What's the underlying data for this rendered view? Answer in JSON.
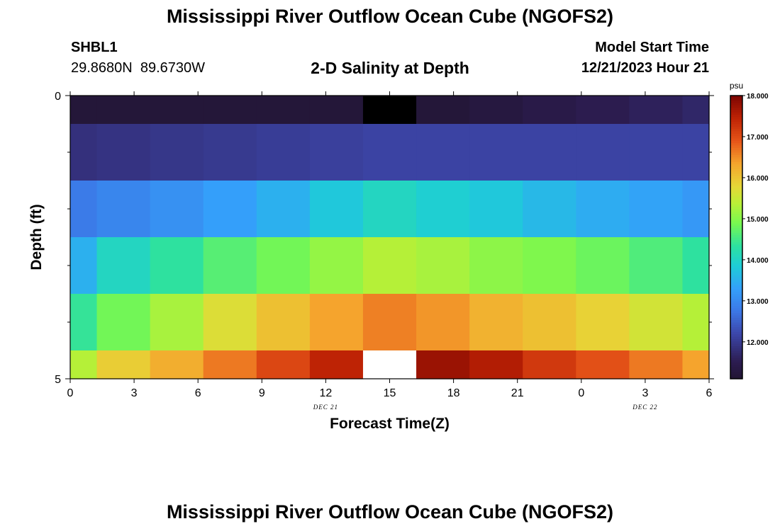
{
  "page": {
    "title": "Mississippi River Outflow Ocean Cube (NGOFS2)",
    "station": {
      "id": "SHBL1",
      "lat": "29.8680N",
      "lon": "89.6730W"
    },
    "model_start": {
      "label": "Model Start Time",
      "value": "12/21/2023 Hour 21"
    },
    "repeated_title": "Mississippi River Outflow Ocean Cube (NGOFS2)"
  },
  "chart_data": {
    "type": "heatmap",
    "title": "2-D Salinity at Depth",
    "xlabel": "Forecast Time(Z)",
    "ylabel": "Depth (ft)",
    "x_ticks": [
      "0",
      "3",
      "6",
      "9",
      "12",
      "15",
      "18",
      "21",
      "0",
      "3",
      "6"
    ],
    "x_range": [
      0,
      30
    ],
    "y_ticks": [
      "0",
      "5"
    ],
    "y_range": [
      0,
      5
    ],
    "date_labels": [
      {
        "text": "DEC 21",
        "x": 12
      },
      {
        "text": "DEC 22",
        "x": 27
      }
    ],
    "column_edges": [
      0,
      1.25,
      3.75,
      6.25,
      8.75,
      11.25,
      13.75,
      16.25,
      18.75,
      21.25,
      23.75,
      26.25,
      28.75,
      30
    ],
    "row_edges": [
      0,
      0.5,
      1.5,
      2.5,
      3.5,
      4.5,
      5
    ],
    "colorbar": {
      "unit": "psu",
      "min": 11.1,
      "max": 18.0,
      "ticks": [
        "12.000",
        "13.000",
        "14.000",
        "15.000",
        "16.000",
        "17.000",
        "18.000"
      ]
    },
    "values": [
      [
        11.2,
        11.2,
        11.2,
        11.2,
        11.2,
        11.2,
        null,
        11.2,
        11.3,
        11.4,
        11.5,
        11.6,
        11.7
      ],
      [
        11.85,
        11.9,
        11.95,
        12.0,
        12.05,
        12.1,
        12.15,
        12.15,
        12.15,
        12.15,
        12.15,
        12.15,
        12.15
      ],
      [
        12.8,
        12.95,
        13.1,
        13.3,
        13.5,
        13.8,
        14.05,
        13.9,
        13.8,
        13.6,
        13.45,
        13.35,
        13.2
      ],
      [
        13.5,
        14.05,
        14.35,
        14.65,
        14.85,
        15.1,
        15.35,
        15.25,
        15.05,
        14.95,
        14.8,
        14.6,
        14.35
      ],
      [
        14.4,
        14.85,
        15.25,
        15.7,
        16.05,
        16.35,
        16.6,
        16.45,
        16.2,
        16.05,
        15.85,
        15.6,
        15.35
      ],
      [
        15.35,
        15.9,
        16.25,
        16.65,
        17.05,
        17.45,
        null,
        17.75,
        17.55,
        17.2,
        16.95,
        16.65,
        16.35
      ]
    ],
    "missing": [
      {
        "row": 0,
        "col": 6,
        "color": "#000000"
      },
      {
        "row": 5,
        "col": 6,
        "color": "#ffffff"
      }
    ]
  }
}
